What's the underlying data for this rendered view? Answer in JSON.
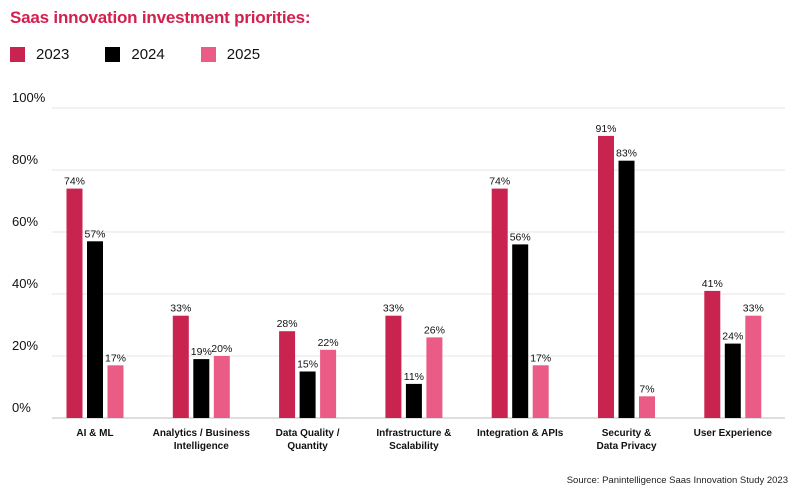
{
  "chart_data": {
    "type": "bar",
    "title": "Saas innovation investment priorities:",
    "categories": [
      [
        "AI & ML"
      ],
      [
        "Analytics / Business",
        "Intelligence"
      ],
      [
        "Data Quality /",
        "Quantity"
      ],
      [
        "Infrastructure &",
        "Scalability"
      ],
      [
        "Integration & APIs"
      ],
      [
        "Security &",
        "Data Privacy"
      ],
      [
        "User Experience"
      ]
    ],
    "series": [
      {
        "name": "2023",
        "color": "#c9234f",
        "values": [
          74,
          33,
          28,
          33,
          74,
          91,
          41
        ]
      },
      {
        "name": "2024",
        "color": "#000000",
        "values": [
          57,
          19,
          15,
          11,
          56,
          83,
          24
        ]
      },
      {
        "name": "2025",
        "color": "#ea5c86",
        "values": [
          17,
          20,
          22,
          26,
          17,
          7,
          33
        ]
      }
    ],
    "value_suffix": "%",
    "ylim": [
      0,
      100
    ],
    "yticks": [
      "0%",
      "20%",
      "40%",
      "60%",
      "80%",
      "100%"
    ],
    "ytick_values": [
      0,
      20,
      40,
      60,
      80,
      100
    ],
    "grid": true,
    "legend_position": "top-left",
    "xlabel": "",
    "ylabel": ""
  },
  "source": "Source: Panintelligence Saas Innovation Study 2023"
}
